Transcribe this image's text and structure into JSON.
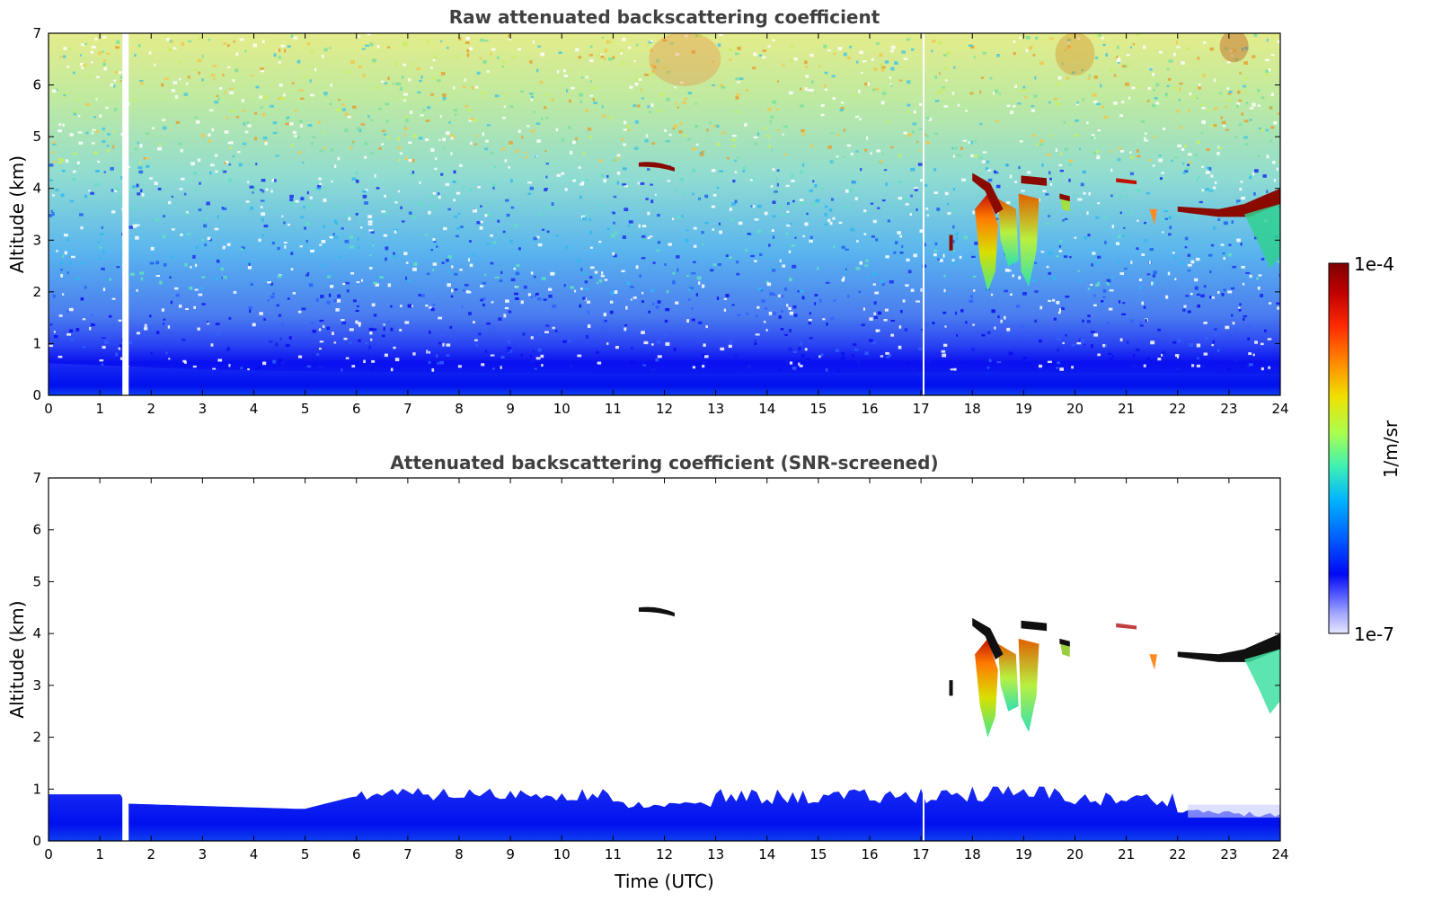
{
  "chart_data": [
    {
      "type": "heatmap",
      "title": "Raw attenuated backscattering coefficient",
      "xlabel": "",
      "ylabel": "Altitude (km)",
      "xlim": [
        0,
        24
      ],
      "ylim": [
        0,
        7
      ],
      "x_ticks": [
        "0",
        "1",
        "2",
        "3",
        "4",
        "5",
        "6",
        "7",
        "8",
        "9",
        "10",
        "11",
        "12",
        "13",
        "14",
        "15",
        "16",
        "17",
        "18",
        "19",
        "20",
        "21",
        "22",
        "23",
        "24"
      ],
      "y_ticks": [
        "0",
        "1",
        "2",
        "3",
        "4",
        "5",
        "6",
        "7"
      ],
      "colorbar_range": [
        "1e-7",
        "1e-4"
      ],
      "scale": "log",
      "data_gaps_utc": [
        1.5,
        17.05
      ],
      "features": [
        {
          "x_start": 11.5,
          "x_end": 12.2,
          "altitude_km": 4.45,
          "level": "high"
        },
        {
          "x_start": 18.0,
          "x_end": 19.4,
          "altitude_km": [
            2.0,
            4.3
          ],
          "level": "high"
        },
        {
          "x_start": 22.0,
          "x_end": 24.0,
          "altitude_km": [
            2.8,
            4.0
          ],
          "level": "high"
        }
      ]
    },
    {
      "type": "heatmap",
      "title": "Attenuated backscattering coefficient (SNR-screened)",
      "xlabel": "Time (UTC)",
      "ylabel": "Altitude (km)",
      "xlim": [
        0,
        24
      ],
      "ylim": [
        0,
        7
      ],
      "x_ticks": [
        "0",
        "1",
        "2",
        "3",
        "4",
        "5",
        "6",
        "7",
        "8",
        "9",
        "10",
        "11",
        "12",
        "13",
        "14",
        "15",
        "16",
        "17",
        "18",
        "19",
        "20",
        "21",
        "22",
        "23",
        "24"
      ],
      "y_ticks": [
        "0",
        "1",
        "2",
        "3",
        "4",
        "5",
        "6",
        "7"
      ],
      "colorbar_range": [
        "1e-7",
        "1e-4"
      ],
      "scale": "log",
      "data_gaps_utc": [
        1.5,
        17.05
      ]
    }
  ],
  "colorbar": {
    "label": "1/m/sr",
    "max_label": "1e-4",
    "min_label": "1e-7",
    "colors": [
      "#7f0000",
      "#c00000",
      "#ff2000",
      "#ff6a00",
      "#ffb400",
      "#f0e800",
      "#b4ff3c",
      "#5aff9c",
      "#14e6d6",
      "#00b4ff",
      "#0068ff",
      "#0020ff",
      "#0000f0",
      "#6e74ff",
      "#b4b8ff",
      "#e4e6ff"
    ]
  }
}
